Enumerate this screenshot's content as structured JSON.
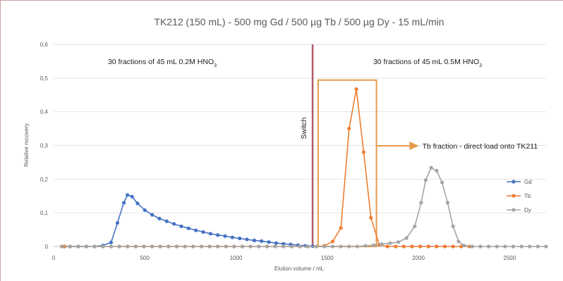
{
  "chart_data": {
    "type": "line",
    "title": "TK212 (150 mL) - 500 mg Gd / 500 µg Tb / 500 µg Dy - 15 mL/min",
    "xlabel": "Elution volume / mL",
    "ylabel": "Relative recovery",
    "xlim": [
      0,
      2700
    ],
    "ylim": [
      0,
      0.6
    ],
    "x_ticks": [
      "0",
      "500",
      "1000",
      "1500",
      "2000",
      "2500"
    ],
    "y_ticks": [
      "0",
      "0,1",
      "0,2",
      "0,3",
      "0,4",
      "0,5",
      "0,6"
    ],
    "grid": "horizontal",
    "legend_position": "right",
    "series": [
      {
        "name": "Gd",
        "color": "#4472c4",
        "points": [
          [
            45,
            0
          ],
          [
            60,
            0
          ],
          [
            90,
            0
          ],
          [
            135,
            0
          ],
          [
            180,
            0
          ],
          [
            225,
            0
          ],
          [
            270,
            0.003
          ],
          [
            315,
            0.012
          ],
          [
            350,
            0.07
          ],
          [
            385,
            0.13
          ],
          [
            405,
            0.153
          ],
          [
            430,
            0.148
          ],
          [
            460,
            0.128
          ],
          [
            500,
            0.108
          ],
          [
            540,
            0.094
          ],
          [
            580,
            0.083
          ],
          [
            620,
            0.075
          ],
          [
            660,
            0.067
          ],
          [
            700,
            0.06
          ],
          [
            740,
            0.054
          ],
          [
            780,
            0.048
          ],
          [
            820,
            0.043
          ],
          [
            860,
            0.038
          ],
          [
            900,
            0.034
          ],
          [
            940,
            0.031
          ],
          [
            980,
            0.027
          ],
          [
            1020,
            0.024
          ],
          [
            1060,
            0.021
          ],
          [
            1100,
            0.018
          ],
          [
            1140,
            0.016
          ],
          [
            1180,
            0.013
          ],
          [
            1220,
            0.01
          ],
          [
            1260,
            0.008
          ],
          [
            1300,
            0.006
          ],
          [
            1340,
            0.004
          ],
          [
            1380,
            0.002
          ],
          [
            1420,
            0.001
          ]
        ]
      },
      {
        "name": "Tb",
        "color": "#ed7d31",
        "points": [
          [
            45,
            0
          ],
          [
            60,
            0
          ],
          [
            90,
            0
          ],
          [
            135,
            0
          ],
          [
            180,
            0
          ],
          [
            225,
            0
          ],
          [
            270,
            0
          ],
          [
            315,
            0
          ],
          [
            360,
            0
          ],
          [
            405,
            0
          ],
          [
            450,
            0
          ],
          [
            495,
            0
          ],
          [
            540,
            0
          ],
          [
            585,
            0
          ],
          [
            630,
            0
          ],
          [
            675,
            0
          ],
          [
            720,
            0
          ],
          [
            765,
            0
          ],
          [
            810,
            0
          ],
          [
            855,
            0
          ],
          [
            900,
            0
          ],
          [
            945,
            0
          ],
          [
            990,
            0
          ],
          [
            1035,
            0
          ],
          [
            1080,
            0
          ],
          [
            1125,
            0
          ],
          [
            1170,
            0
          ],
          [
            1215,
            0
          ],
          [
            1260,
            0
          ],
          [
            1305,
            0
          ],
          [
            1350,
            0
          ],
          [
            1395,
            0
          ],
          [
            1440,
            0
          ],
          [
            1485,
            0.002
          ],
          [
            1530,
            0.015
          ],
          [
            1575,
            0.055
          ],
          [
            1620,
            0.35
          ],
          [
            1660,
            0.467
          ],
          [
            1700,
            0.28
          ],
          [
            1740,
            0.085
          ],
          [
            1785,
            0.005
          ],
          [
            1830,
            0
          ],
          [
            1875,
            0
          ],
          [
            1920,
            0
          ],
          [
            1965,
            0
          ],
          [
            2010,
            0
          ],
          [
            2055,
            0
          ],
          [
            2100,
            0
          ],
          [
            2145,
            0
          ],
          [
            2190,
            0
          ],
          [
            2235,
            0
          ],
          [
            2280,
            0
          ]
        ]
      },
      {
        "name": "Dy",
        "color": "#a5a5a5",
        "points": [
          [
            45,
            0
          ],
          [
            90,
            0
          ],
          [
            135,
            0
          ],
          [
            180,
            0
          ],
          [
            225,
            0
          ],
          [
            270,
            0
          ],
          [
            315,
            0
          ],
          [
            360,
            0
          ],
          [
            405,
            0
          ],
          [
            450,
            0
          ],
          [
            495,
            0
          ],
          [
            540,
            0
          ],
          [
            585,
            0
          ],
          [
            630,
            0
          ],
          [
            675,
            0
          ],
          [
            720,
            0
          ],
          [
            765,
            0
          ],
          [
            810,
            0
          ],
          [
            855,
            0
          ],
          [
            900,
            0
          ],
          [
            945,
            0
          ],
          [
            990,
            0
          ],
          [
            1035,
            0
          ],
          [
            1080,
            0
          ],
          [
            1125,
            0
          ],
          [
            1170,
            0
          ],
          [
            1215,
            0
          ],
          [
            1260,
            0
          ],
          [
            1305,
            0
          ],
          [
            1350,
            0
          ],
          [
            1395,
            0
          ],
          [
            1440,
            0
          ],
          [
            1485,
            0
          ],
          [
            1530,
            0
          ],
          [
            1575,
            0
          ],
          [
            1620,
            0
          ],
          [
            1665,
            0
          ],
          [
            1710,
            0.002
          ],
          [
            1755,
            0.004
          ],
          [
            1800,
            0.007
          ],
          [
            1845,
            0.01
          ],
          [
            1890,
            0.013
          ],
          [
            1935,
            0.025
          ],
          [
            1980,
            0.06
          ],
          [
            2015,
            0.13
          ],
          [
            2040,
            0.197
          ],
          [
            2070,
            0.234
          ],
          [
            2100,
            0.225
          ],
          [
            2130,
            0.19
          ],
          [
            2160,
            0.13
          ],
          [
            2190,
            0.06
          ],
          [
            2220,
            0.015
          ],
          [
            2250,
            0.003
          ],
          [
            2295,
            0
          ],
          [
            2340,
            0
          ],
          [
            2385,
            0
          ],
          [
            2430,
            0
          ],
          [
            2475,
            0
          ],
          [
            2520,
            0
          ],
          [
            2565,
            0
          ],
          [
            2610,
            0
          ],
          [
            2655,
            0
          ],
          [
            2700,
            0
          ]
        ]
      }
    ],
    "annotations": {
      "left_text": "30 fractions of 45 mL 0.2M HNO",
      "left_sub": "3",
      "right_text": "30 fractions of 45 mL 0.5M HNO",
      "right_sub": "3",
      "switch_label": "Switch",
      "switch_x": 1420,
      "switch_color": "#b35a66",
      "tb_box_x": [
        1450,
        1770
      ],
      "tb_box_top": 0.494,
      "tb_box_color": "#e69a4b",
      "tb_fraction_label": "Tb fraction - direct load onto TK211"
    }
  }
}
